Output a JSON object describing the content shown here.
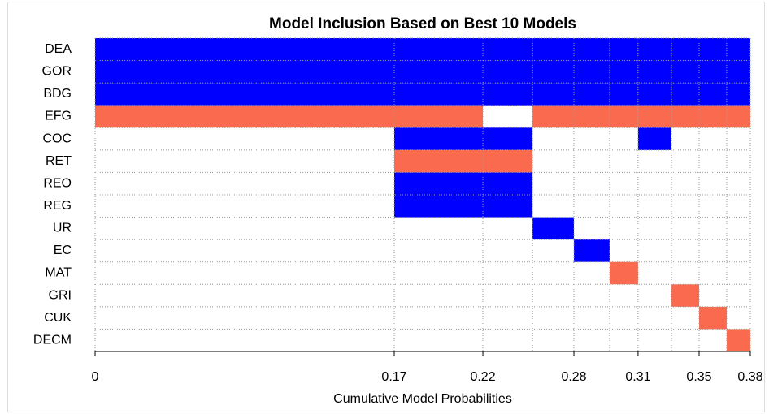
{
  "chart_data": {
    "type": "inclusion-map",
    "title": "Model Inclusion Based on Best  10  Models",
    "x_label": "Cumulative Model Probabilities",
    "bins": [
      0,
      0.1735,
      0.2249,
      0.2537,
      0.2777,
      0.2984,
      0.3149,
      0.3343,
      0.3503,
      0.3663,
      0.38
    ],
    "xlim": [
      0,
      0.38
    ],
    "xticks": [
      0,
      {
        "value": 0.1735,
        "label": "0.17"
      },
      {
        "value": 0.2249,
        "label": "0.22"
      },
      {
        "value": 0.2777,
        "label": "0.28"
      },
      {
        "value": 0.3149,
        "label": "0.31"
      },
      {
        "value": 0.3503,
        "label": "0.35"
      },
      0.38
    ],
    "color_positive": "#0000ff",
    "color_negative": "#fa6a4f",
    "grid": true,
    "rows": [
      {
        "name": "DEA",
        "values": [
          1,
          1,
          1,
          1,
          1,
          1,
          1,
          1,
          1,
          1
        ]
      },
      {
        "name": "GOR",
        "values": [
          1,
          1,
          1,
          1,
          1,
          1,
          1,
          1,
          1,
          1
        ]
      },
      {
        "name": "BDG",
        "values": [
          1,
          1,
          1,
          1,
          1,
          1,
          1,
          1,
          1,
          1
        ]
      },
      {
        "name": "EFG",
        "values": [
          -1,
          -1,
          0,
          -1,
          -1,
          -1,
          -1,
          -1,
          -1,
          -1
        ]
      },
      {
        "name": "COC",
        "values": [
          0,
          1,
          1,
          0,
          0,
          0,
          1,
          0,
          0,
          0
        ]
      },
      {
        "name": "RET",
        "values": [
          0,
          -1,
          -1,
          0,
          0,
          0,
          0,
          0,
          0,
          0
        ]
      },
      {
        "name": "REO",
        "values": [
          0,
          1,
          1,
          0,
          0,
          0,
          0,
          0,
          0,
          0
        ]
      },
      {
        "name": "REG",
        "values": [
          0,
          1,
          1,
          0,
          0,
          0,
          0,
          0,
          0,
          0
        ]
      },
      {
        "name": "UR",
        "values": [
          0,
          0,
          0,
          1,
          0,
          0,
          0,
          0,
          0,
          0
        ]
      },
      {
        "name": "EC",
        "values": [
          0,
          0,
          0,
          0,
          1,
          0,
          0,
          0,
          0,
          0
        ]
      },
      {
        "name": "MAT",
        "values": [
          0,
          0,
          0,
          0,
          0,
          -1,
          0,
          0,
          0,
          0
        ]
      },
      {
        "name": "GRI",
        "values": [
          0,
          0,
          0,
          0,
          0,
          0,
          0,
          -1,
          0,
          0
        ]
      },
      {
        "name": "CUK",
        "values": [
          0,
          0,
          0,
          0,
          0,
          0,
          0,
          0,
          -1,
          0
        ]
      },
      {
        "name": "DECM",
        "values": [
          0,
          0,
          0,
          0,
          0,
          0,
          0,
          0,
          0,
          -1
        ]
      }
    ]
  }
}
